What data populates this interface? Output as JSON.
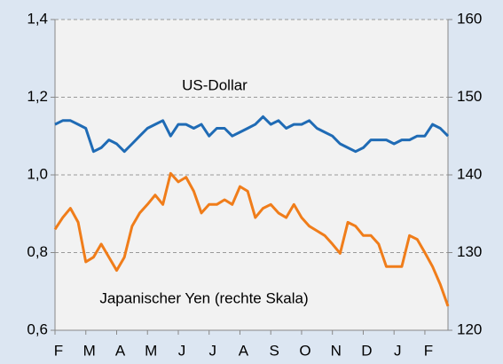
{
  "chart_data": {
    "type": "line",
    "categories": [
      "F",
      null,
      null,
      null,
      "M",
      null,
      null,
      null,
      "A",
      null,
      null,
      null,
      "M",
      null,
      null,
      null,
      "J",
      null,
      null,
      null,
      "J",
      null,
      null,
      null,
      "A",
      null,
      null,
      null,
      "S",
      null,
      null,
      null,
      "O",
      null,
      null,
      null,
      "N",
      null,
      null,
      null,
      "D",
      null,
      null,
      null,
      "J",
      null,
      null,
      null,
      "F",
      null,
      null,
      null
    ],
    "series": [
      {
        "name": "US-Dollar",
        "color": "#1f6bb5",
        "values": [
          1.13,
          1.14,
          1.14,
          1.13,
          1.12,
          1.06,
          1.07,
          1.09,
          1.08,
          1.06,
          1.08,
          1.1,
          1.12,
          1.13,
          1.14,
          1.1,
          1.13,
          1.13,
          1.12,
          1.13,
          1.1,
          1.12,
          1.12,
          1.1,
          1.11,
          1.12,
          1.13,
          1.15,
          1.13,
          1.14,
          1.12,
          1.13,
          1.13,
          1.14,
          1.12,
          1.11,
          1.1,
          1.08,
          1.07,
          1.06,
          1.07,
          1.09,
          1.09,
          1.09,
          1.08,
          1.09,
          1.09,
          1.1,
          1.1,
          1.13,
          1.12,
          1.1
        ]
      },
      {
        "name": "Japanischer Yen (rechte Skala)",
        "color": "#f07d1a",
        "axis": "y2",
        "values": [
          133.0,
          134.5,
          135.7,
          133.9,
          128.8,
          129.4,
          131.1,
          129.4,
          127.7,
          129.4,
          133.4,
          135.1,
          136.2,
          137.4,
          136.2,
          140.2,
          139.1,
          139.7,
          137.9,
          135.1,
          136.2,
          136.2,
          136.8,
          136.2,
          138.5,
          137.9,
          134.5,
          135.7,
          136.2,
          135.1,
          134.5,
          136.2,
          134.5,
          133.4,
          132.8,
          132.2,
          131.1,
          129.9,
          133.9,
          133.4,
          132.2,
          132.2,
          131.1,
          128.2,
          128.2,
          128.2,
          132.2,
          131.7,
          130.0,
          128.2,
          125.9,
          123.1
        ]
      }
    ],
    "ylim": [
      0.6,
      1.4
    ],
    "yticks": [
      {
        "value": 0.6,
        "label": "0,6"
      },
      {
        "value": 0.8,
        "label": "0,8"
      },
      {
        "value": 1.0,
        "label": "1,0"
      },
      {
        "value": 1.2,
        "label": "1,2"
      },
      {
        "value": 1.4,
        "label": "1,4"
      }
    ],
    "y2lim": [
      120,
      160
    ],
    "y2ticks": [
      120,
      130,
      140,
      150,
      160
    ],
    "grid": true
  }
}
